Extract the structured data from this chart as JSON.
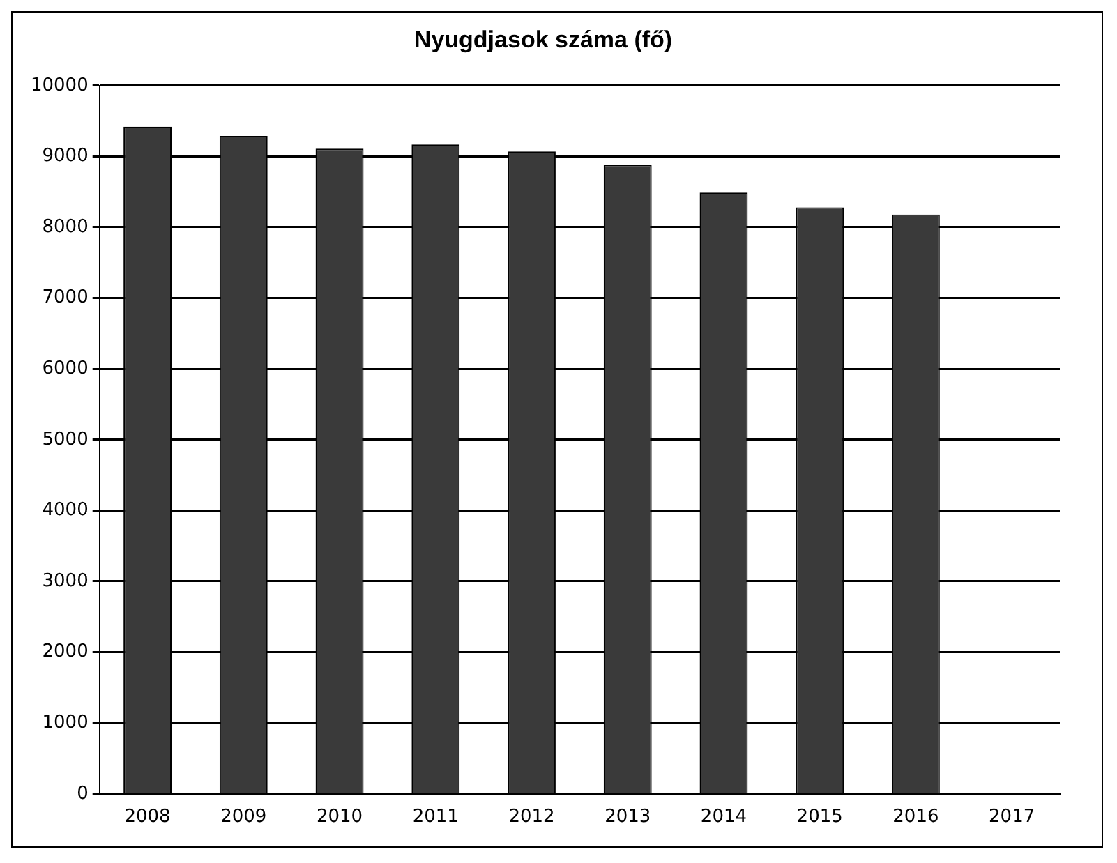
{
  "chart_data": {
    "type": "bar",
    "title": "Nyugdjasok száma (fő)",
    "categories": [
      "2008",
      "2009",
      "2010",
      "2011",
      "2012",
      "2013",
      "2014",
      "2015",
      "2016",
      "2017"
    ],
    "values": [
      9420,
      9290,
      9110,
      9170,
      9070,
      8880,
      8490,
      8280,
      8180,
      null
    ],
    "color": "#3a3a3a",
    "ylim": [
      0,
      10000
    ],
    "yticks": [
      0,
      1000,
      2000,
      3000,
      4000,
      5000,
      6000,
      7000,
      8000,
      9000,
      10000
    ],
    "grid": "y",
    "legend": false
  }
}
